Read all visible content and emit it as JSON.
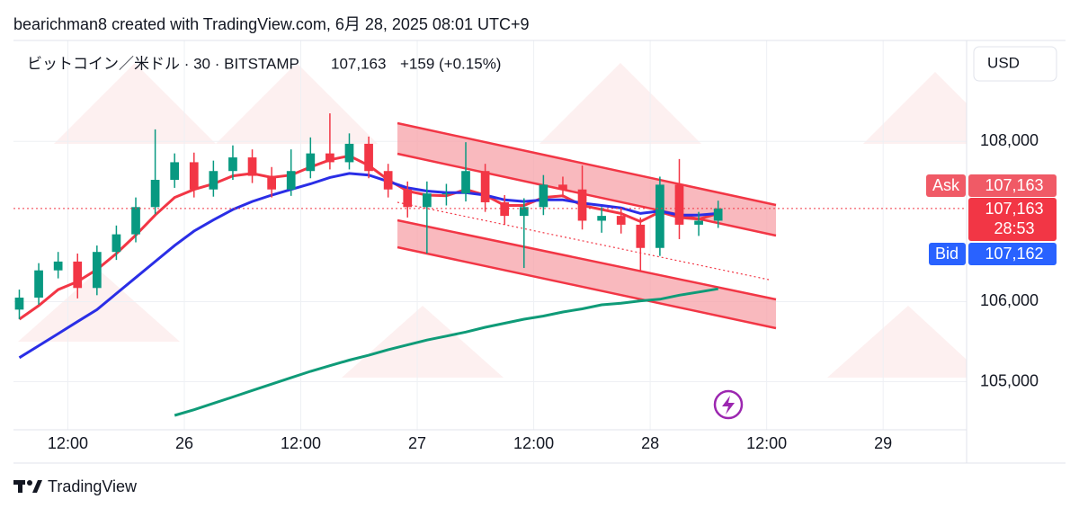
{
  "header": {
    "attribution": "bearichman8 created with TradingView.com, 6月 28, 2025 08:01 UTC+9",
    "symbol": "ビットコイン／米ドル · 30 · BITSTAMP",
    "price": "107,163",
    "change": "+159 (+0.15%)"
  },
  "currency": "USD",
  "brand": "TradingView",
  "price_tags": {
    "ask_label": "Ask",
    "ask": "107,163",
    "last": "107,163",
    "countdown": "28:53",
    "bid_label": "Bid",
    "bid": "107,162"
  },
  "chart_data": {
    "type": "candlestick",
    "x": [
      7,
      9,
      11,
      13,
      15,
      17,
      19,
      21,
      23,
      25,
      27,
      29,
      31,
      33,
      35,
      37,
      39,
      41,
      43,
      45,
      47,
      49,
      51,
      53,
      55,
      57,
      59,
      61,
      63,
      65,
      67,
      69,
      71,
      73,
      75,
      77,
      79
    ],
    "open": [
      105900,
      106050,
      106390,
      106500,
      106170,
      106620,
      106840,
      107180,
      107520,
      107740,
      107400,
      107630,
      107800,
      107570,
      107400,
      107630,
      107850,
      107740,
      107970,
      107630,
      107400,
      107180,
      107350,
      107350,
      107630,
      107240,
      107070,
      107180,
      107460,
      107400,
      107010,
      107070,
      106960,
      106670,
      107460,
      106960,
      107010
    ],
    "high": [
      106150,
      106480,
      106620,
      106600,
      106700,
      106950,
      107300,
      108150,
      107850,
      107860,
      107760,
      107950,
      107900,
      107680,
      107900,
      108050,
      108350,
      108100,
      108060,
      107720,
      107500,
      107500,
      107470,
      107990,
      107720,
      107330,
      107290,
      107580,
      107560,
      107700,
      107180,
      107160,
      107050,
      107560,
      107780,
      107120,
      107260
    ],
    "low": [
      105780,
      105960,
      106290,
      106040,
      106080,
      106520,
      106740,
      107090,
      107420,
      107300,
      107310,
      107520,
      107480,
      107300,
      107320,
      107540,
      107650,
      107650,
      107540,
      107300,
      107050,
      106600,
      107200,
      107250,
      107120,
      106960,
      106420,
      107080,
      107300,
      106900,
      106860,
      106850,
      106380,
      106570,
      106780,
      106820,
      106920
    ],
    "close": [
      106050,
      106390,
      106500,
      106170,
      106620,
      106840,
      107180,
      107520,
      107740,
      107400,
      107630,
      107800,
      107570,
      107400,
      107630,
      107850,
      107740,
      107970,
      107630,
      107400,
      107180,
      107350,
      107350,
      107630,
      107240,
      107070,
      107180,
      107460,
      107400,
      107010,
      107070,
      106960,
      106670,
      107460,
      106960,
      107010,
      107163
    ],
    "up_color": "#089981",
    "down_color": "#f23645",
    "overlays": [
      {
        "color": "#f23645",
        "values": [
          105780,
          105950,
          106150,
          106250,
          106400,
          106600,
          106830,
          107080,
          107300,
          107400,
          107470,
          107570,
          107600,
          107550,
          107580,
          107680,
          107770,
          107820,
          107700,
          107520,
          107380,
          107330,
          107320,
          107400,
          107330,
          107200,
          107200,
          107300,
          107320,
          107200,
          107150,
          107100,
          107000,
          107120,
          107050,
          107030,
          107100
        ]
      },
      {
        "color": "#2a2ee6",
        "values": [
          105300,
          105450,
          105600,
          105750,
          105900,
          106100,
          106300,
          106500,
          106700,
          106880,
          107020,
          107150,
          107250,
          107330,
          107400,
          107470,
          107550,
          107600,
          107580,
          107500,
          107420,
          107380,
          107360,
          107360,
          107330,
          107270,
          107250,
          107270,
          107270,
          107230,
          107200,
          107170,
          107100,
          107130,
          107080,
          107080,
          107100
        ]
      },
      {
        "color": "#0f9b78",
        "values": [
          null,
          null,
          null,
          null,
          null,
          null,
          null,
          null,
          104580,
          104650,
          104730,
          104810,
          104890,
          104970,
          105050,
          105130,
          105200,
          105270,
          105330,
          105400,
          105460,
          105520,
          105570,
          105620,
          105680,
          105730,
          105780,
          105820,
          105870,
          105910,
          105960,
          105980,
          106010,
          106030,
          106080,
          106120,
          106160
        ]
      }
    ],
    "last_price": 107163,
    "xlim": [
      6.4,
      104.6
    ],
    "xticks": [
      {
        "value": 12,
        "label": "12:00"
      },
      {
        "value": 24,
        "label": "26"
      },
      {
        "value": 36,
        "label": "12:00"
      },
      {
        "value": 48,
        "label": "27"
      },
      {
        "value": 60,
        "label": "12:00"
      },
      {
        "value": 72,
        "label": "28"
      },
      {
        "value": 84,
        "label": "12:00"
      },
      {
        "value": 96,
        "label": "29"
      }
    ],
    "ylim": [
      104400,
      109260
    ],
    "yticks": [
      {
        "value": 105000,
        "label": "105,000"
      },
      {
        "value": 106000,
        "label": "106,000"
      },
      {
        "value": 108000,
        "label": "108,000"
      }
    ],
    "grid": true
  }
}
